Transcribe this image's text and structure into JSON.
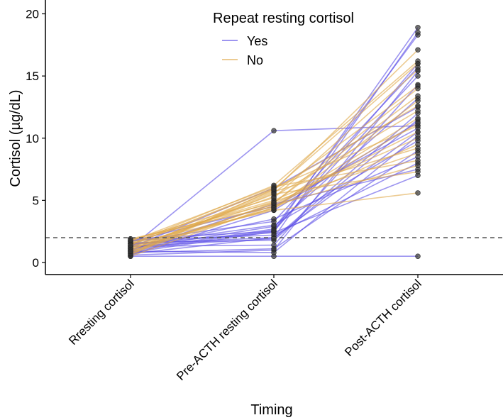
{
  "chart_data": {
    "type": "line",
    "title": "",
    "xlabel": "Timing",
    "ylabel": "Cortisol (µg/dL)",
    "categories": [
      "Rresting cortisol",
      "Pre-ACTH resting cortisol",
      "Post-ACTH cortisol"
    ],
    "ylim": [
      -0.5,
      20.5
    ],
    "yticks": [
      0,
      5,
      10,
      15,
      20
    ],
    "reference_line": {
      "y": 2,
      "style": "dashed"
    },
    "legend": {
      "title": "Repeat resting cortisol",
      "placement": "top-center",
      "entries": [
        "Yes",
        "No"
      ]
    },
    "colors": {
      "Yes": "#5b4ee6",
      "No": "#e0a94a",
      "point": "#333333",
      "ref": "#555555"
    },
    "series": [
      {
        "name": "Yes",
        "subjects": [
          [
            0.5,
            0.5,
            0.5
          ],
          [
            1.2,
            10.6,
            11.0
          ],
          [
            0.8,
            2.5,
            18.9
          ],
          [
            1.5,
            2.0,
            18.5
          ],
          [
            1.0,
            2.7,
            18.3
          ],
          [
            1.7,
            3.3,
            15.7
          ],
          [
            0.6,
            1.0,
            15.4
          ],
          [
            1.9,
            2.5,
            16.0
          ],
          [
            1.3,
            1.4,
            14.3
          ],
          [
            1.1,
            2.9,
            13.2
          ],
          [
            0.7,
            2.0,
            10.5
          ],
          [
            1.6,
            1.8,
            11.5
          ],
          [
            0.9,
            0.8,
            10.2
          ],
          [
            1.4,
            3.0,
            9.8
          ],
          [
            1.8,
            2.2,
            8.0
          ],
          [
            1.0,
            4.7,
            7.5
          ],
          [
            0.6,
            4.2,
            11.3
          ],
          [
            1.2,
            6.0,
            12.5
          ],
          [
            1.5,
            2.4,
            7.0
          ],
          [
            0.8,
            1.1,
            9.0
          ],
          [
            1.7,
            4.5,
            10.8
          ],
          [
            1.3,
            1.9,
            12.0
          ],
          [
            0.9,
            2.6,
            15.0
          ],
          [
            1.1,
            3.5,
            8.5
          ]
        ]
      },
      {
        "name": "No",
        "subjects": [
          [
            1.0,
            5.8,
            17.1
          ],
          [
            1.5,
            6.2,
            16.2
          ],
          [
            0.7,
            5.6,
            14.2
          ],
          [
            1.8,
            4.8,
            14.0
          ],
          [
            1.2,
            4.3,
            13.0
          ],
          [
            0.6,
            5.9,
            12.6
          ],
          [
            1.9,
            4.5,
            11.6
          ],
          [
            1.4,
            6.0,
            11.0
          ],
          [
            0.9,
            4.7,
            10.5
          ],
          [
            1.6,
            5.0,
            10.0
          ],
          [
            1.1,
            4.4,
            9.5
          ],
          [
            0.8,
            5.7,
            9.2
          ],
          [
            1.3,
            4.9,
            8.8
          ],
          [
            1.7,
            6.1,
            8.2
          ],
          [
            0.5,
            4.6,
            7.8
          ],
          [
            1.0,
            5.5,
            7.3
          ],
          [
            1.5,
            4.2,
            5.6
          ],
          [
            1.2,
            5.3,
            12.2
          ],
          [
            0.7,
            4.8,
            13.4
          ],
          [
            1.8,
            5.2,
            15.5
          ],
          [
            1.4,
            5.9,
            16.0
          ],
          [
            0.9,
            4.4,
            11.2
          ]
        ]
      }
    ]
  }
}
